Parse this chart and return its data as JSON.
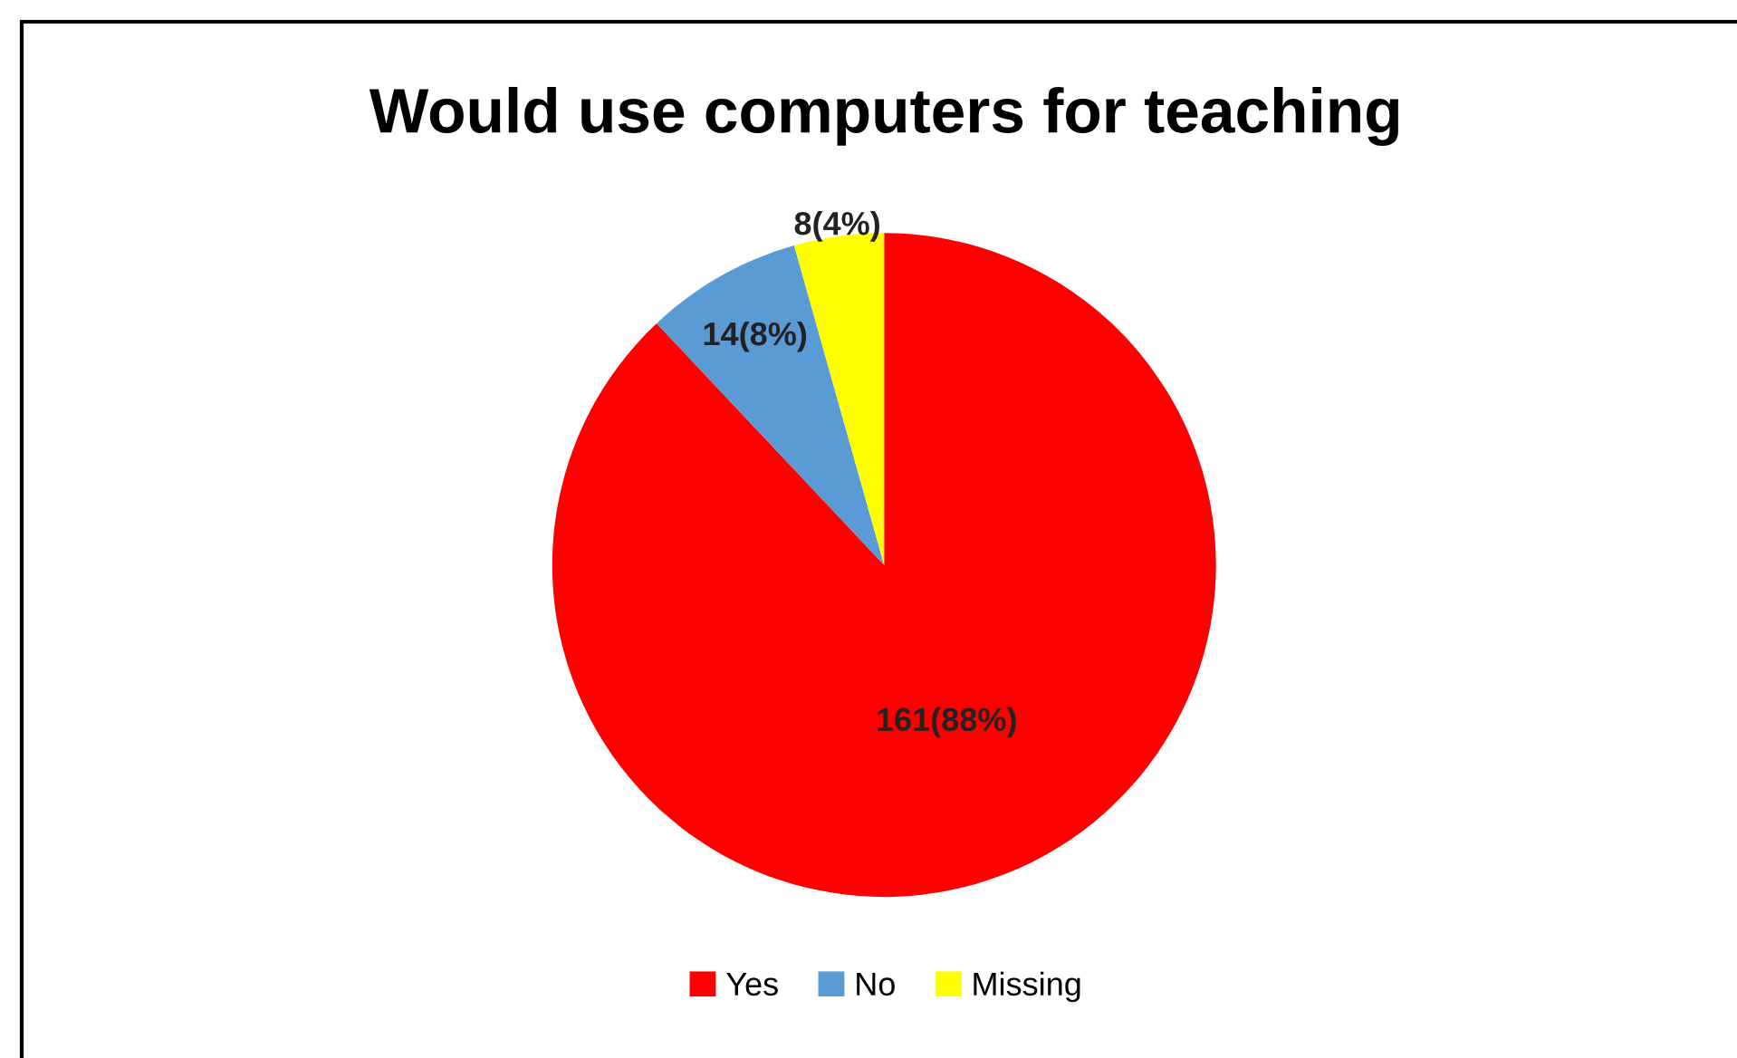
{
  "chart_data": {
    "type": "pie",
    "title": "Would use computers for teaching",
    "categories": [
      "Yes",
      "No",
      "Missing"
    ],
    "values": [
      161,
      14,
      8
    ],
    "colors": [
      "#ff0000",
      "#5b9bd5",
      "#ffff00"
    ],
    "value_labels": [
      "161(88%)",
      "14(8%)",
      "8(4%)"
    ],
    "legend": "bottom"
  }
}
